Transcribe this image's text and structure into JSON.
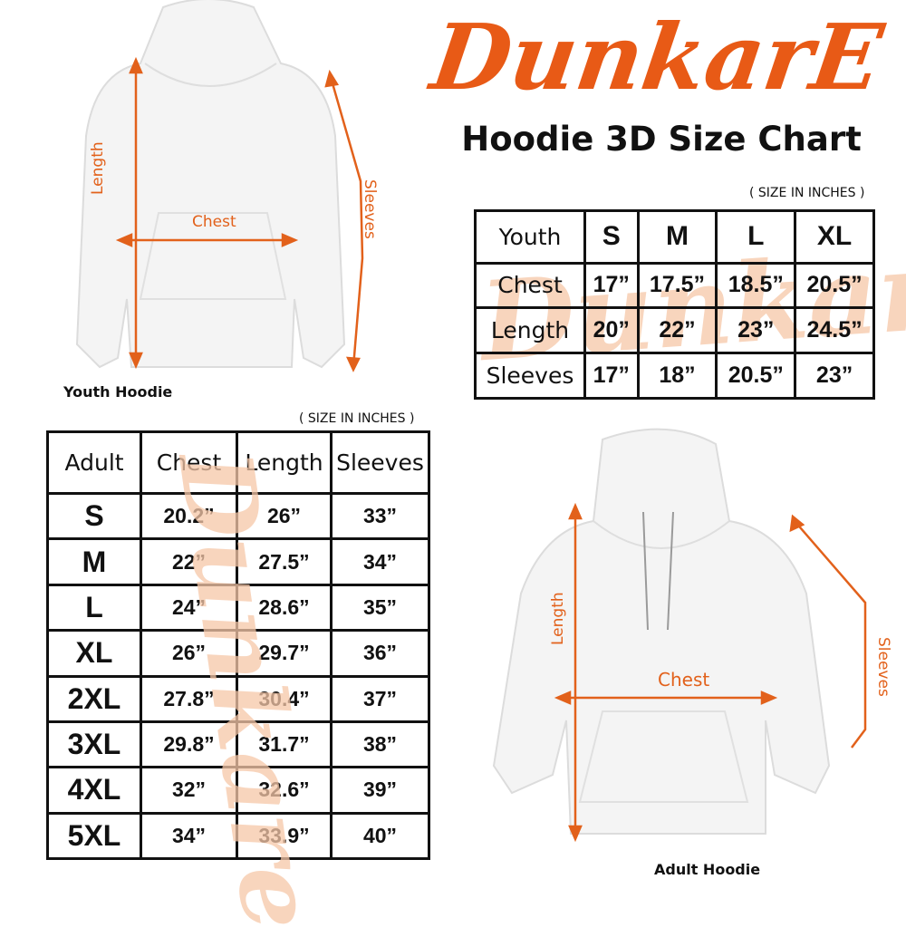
{
  "brand": {
    "logo_text": "DunkarE",
    "color": "#e85a16",
    "watermark_color": "#f6c7a8"
  },
  "title": "Hoodie 3D Size Chart",
  "youth": {
    "image_label": "Youth Hoodie",
    "measure_labels": {
      "length": "Length",
      "chest": "Chest",
      "sleeves": "Sleeves"
    },
    "units_note": "( SIZE IN INCHES )",
    "table": {
      "header": [
        "Youth",
        "S",
        "M",
        "L",
        "XL"
      ],
      "rows": [
        [
          "Chest",
          "17”",
          "17.5”",
          "18.5”",
          "20.5”"
        ],
        [
          "Length",
          "20”",
          "22”",
          "23”",
          "24.5”"
        ],
        [
          "Sleeves",
          "17”",
          "18”",
          "20.5”",
          "23”"
        ]
      ]
    }
  },
  "adult": {
    "image_label": "Adult Hoodie",
    "measure_labels": {
      "length": "Length",
      "chest": "Chest",
      "sleeves": "Sleeves"
    },
    "units_note": "( SIZE IN INCHES )",
    "table": {
      "header": [
        "Adult",
        "Chest",
        "Length",
        "Sleeves"
      ],
      "rows": [
        [
          "S",
          "20.2”",
          "26”",
          "33”"
        ],
        [
          "M",
          "22”",
          "27.5”",
          "34”"
        ],
        [
          "L",
          "24”",
          "28.6”",
          "35”"
        ],
        [
          "XL",
          "26”",
          "29.7”",
          "36”"
        ],
        [
          "2XL",
          "27.8”",
          "30.4”",
          "37”"
        ],
        [
          "3XL",
          "29.8”",
          "31.7”",
          "38”"
        ],
        [
          "4XL",
          "32”",
          "32.6”",
          "39”"
        ],
        [
          "5XL",
          "34”",
          "33.9”",
          "40”"
        ]
      ]
    }
  }
}
